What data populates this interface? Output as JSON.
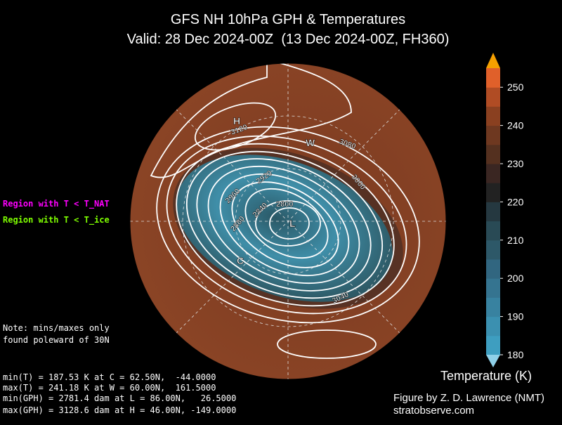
{
  "header": {
    "title": "GFS NH 10hPa GPH & Temperatures",
    "subtitle": "Valid: 28 Dec 2024-00Z  (13 Dec 2024-00Z, FH360)"
  },
  "legend": {
    "nat": "Region with T < T_NAT",
    "ice": "Region with T < T_ice"
  },
  "note": [
    "Note: mins/maxes only",
    "found poleward of 30N"
  ],
  "stats": [
    "min(T) = 187.53 K at C = 62.50N,  -44.0000",
    "max(T) = 241.18 K at W = 60.00N,  161.5000",
    "min(GPH) = 2781.4 dam at L = 86.00N,   26.5000",
    "max(GPH) = 3128.6 dam at H = 46.00N, -149.0000"
  ],
  "map": {
    "markers": [
      "H",
      "L",
      "C",
      "W"
    ],
    "contour_labels": [
      "3120",
      "3080",
      "3000",
      "2960",
      "2920",
      "2880",
      "2840",
      "2800",
      "3040"
    ]
  },
  "colorbar": {
    "label": "Temperature (K)",
    "range": [
      180,
      255
    ],
    "ticks": [
      180,
      190,
      200,
      210,
      220,
      230,
      240,
      250
    ],
    "colors": [
      "#3e9ec0",
      "#3b90b0",
      "#3882a0",
      "#357490",
      "#316680",
      "#2d5868",
      "#294a55",
      "#253840",
      "#222222",
      "#3a2622",
      "#54301f",
      "#6e3820",
      "#8a4020",
      "#b04c24",
      "#e0602a"
    ],
    "under": "#8fd0e8",
    "over": "#f5a000"
  },
  "credit": [
    "Figure by Z. D. Lawrence (NMT)",
    "stratobserve.com"
  ]
}
